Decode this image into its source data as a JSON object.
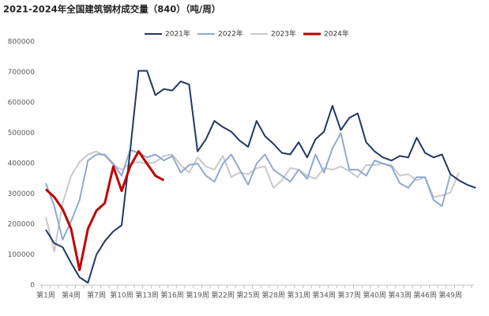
{
  "chart_data": {
    "type": "line",
    "title": "2021-2024年全国建筑钢材成交量（840）（吨/周）",
    "categories": [
      "第1周",
      null,
      null,
      "第4周",
      null,
      null,
      "第7周",
      null,
      null,
      "第10周",
      null,
      null,
      "第13周",
      null,
      null,
      "第16周",
      null,
      null,
      "第19周",
      null,
      null,
      "第22周",
      null,
      null,
      "第25周",
      null,
      null,
      "第28周",
      null,
      null,
      "第31周",
      null,
      null,
      "第34周",
      null,
      null,
      "第37周",
      null,
      null,
      "第40周",
      null,
      null,
      "第43周",
      null,
      null,
      "第46周",
      null,
      null,
      "第49周",
      null,
      null,
      null
    ],
    "series": [
      {
        "name": "2021年",
        "color": "#1f3864",
        "width": 2,
        "values": [
          182000,
          138000,
          125000,
          73000,
          26000,
          8000,
          100000,
          145000,
          177000,
          197000,
          440000,
          705000,
          705000,
          625000,
          645000,
          640000,
          670000,
          660000,
          440000,
          480000,
          540000,
          520000,
          505000,
          475000,
          455000,
          540000,
          490000,
          465000,
          435000,
          430000,
          470000,
          420000,
          480000,
          505000,
          590000,
          510000,
          550000,
          565000,
          470000,
          440000,
          420000,
          410000,
          425000,
          420000,
          485000,
          435000,
          420000,
          430000,
          365000,
          345000,
          330000,
          320000
        ]
      },
      {
        "name": "2022年",
        "color": "#8ea9cf",
        "width": 2,
        "values": [
          335000,
          260000,
          150000,
          210000,
          280000,
          410000,
          430000,
          430000,
          400000,
          360000,
          445000,
          435000,
          420000,
          430000,
          410000,
          425000,
          370000,
          395000,
          400000,
          360000,
          340000,
          400000,
          430000,
          380000,
          330000,
          400000,
          430000,
          380000,
          360000,
          340000,
          380000,
          350000,
          430000,
          370000,
          450000,
          500000,
          380000,
          380000,
          360000,
          410000,
          400000,
          390000,
          335000,
          320000,
          355000,
          355000,
          280000,
          260000,
          365000,
          null,
          null,
          null
        ]
      },
      {
        "name": "2023年",
        "color": "#c9c9c9",
        "width": 2,
        "values": [
          225000,
          110000,
          270000,
          360000,
          405000,
          430000,
          440000,
          425000,
          395000,
          380000,
          400000,
          405000,
          400000,
          405000,
          425000,
          430000,
          395000,
          370000,
          420000,
          390000,
          380000,
          425000,
          355000,
          370000,
          365000,
          385000,
          390000,
          320000,
          345000,
          385000,
          380000,
          360000,
          350000,
          385000,
          380000,
          390000,
          375000,
          355000,
          395000,
          395000,
          400000,
          395000,
          360000,
          365000,
          345000,
          355000,
          290000,
          295000,
          305000,
          370000,
          null,
          null
        ]
      },
      {
        "name": "2024年",
        "color": "#c00000",
        "width": 3,
        "values": [
          315000,
          290000,
          250000,
          185000,
          50000,
          185000,
          245000,
          270000,
          390000,
          310000,
          390000,
          440000,
          400000,
          360000,
          345000,
          null,
          null,
          null,
          null,
          null,
          null,
          null,
          null,
          null,
          null,
          null,
          null,
          null,
          null,
          null,
          null,
          null,
          null,
          null,
          null,
          null,
          null,
          null,
          null,
          null,
          null,
          null,
          null,
          null,
          null,
          null,
          null,
          null,
          null,
          null,
          null,
          null
        ]
      }
    ],
    "ylim": [
      0,
      800000
    ],
    "yticks": [
      0,
      100000,
      200000,
      300000,
      400000,
      500000,
      600000,
      700000,
      800000
    ]
  }
}
